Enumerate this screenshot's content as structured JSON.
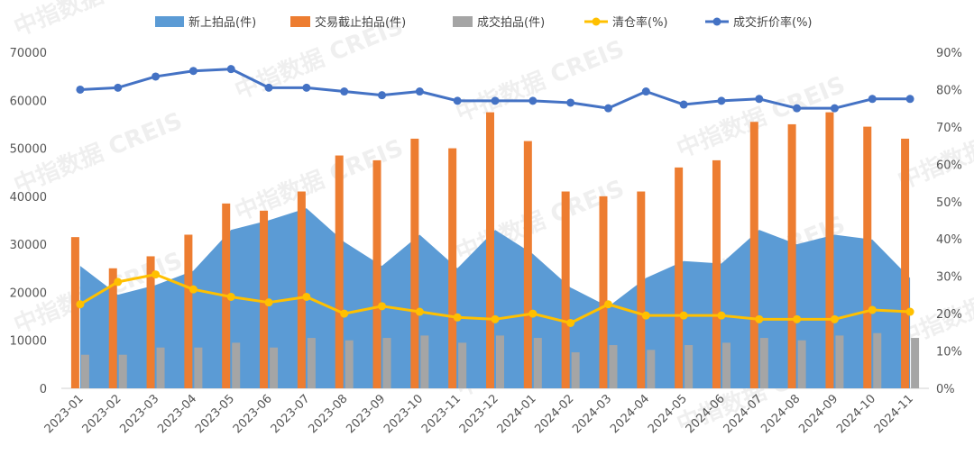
{
  "colors": {
    "area": "#5b9bd5",
    "bar_orange": "#ed7d31",
    "bar_gray": "#a5a5a5",
    "line_yellow": "#ffc000",
    "line_blue": "#4472c4"
  },
  "watermark_text": "中指数据 CREIS",
  "chart_data": {
    "type": "bar",
    "categories": [
      "2023-01",
      "2023-02",
      "2023-03",
      "2023-04",
      "2023-05",
      "2023-06",
      "2023-07",
      "2023-08",
      "2023-09",
      "2023-10",
      "2023-11",
      "2023-12",
      "2024-01",
      "2024-02",
      "2024-03",
      "2024-04",
      "2024-05",
      "2024-06",
      "2024-07",
      "2024-08",
      "2024-09",
      "2024-10",
      "2024-11"
    ],
    "left_axis": {
      "ylim": [
        0,
        70000
      ],
      "ticks": [
        "0",
        "10000",
        "20000",
        "30000",
        "40000",
        "50000",
        "60000",
        "70000"
      ]
    },
    "right_axis": {
      "ylim": [
        0,
        90
      ],
      "ticks": [
        "0%",
        "10%",
        "20%",
        "30%",
        "40%",
        "50%",
        "60%",
        "70%",
        "80%",
        "90%"
      ]
    },
    "legend_position": "top",
    "series": [
      {
        "name": "新上拍品(件)",
        "type": "area",
        "axis": "left",
        "color": "#5b9bd5",
        "values": [
          25500,
          19500,
          21500,
          24500,
          33000,
          35000,
          37500,
          30500,
          25500,
          32000,
          25000,
          33000,
          28000,
          21000,
          17000,
          23000,
          26500,
          26000,
          33000,
          30000,
          32000,
          31000,
          23000
        ]
      },
      {
        "name": "交易截止拍品(件)",
        "type": "bar",
        "axis": "left",
        "color": "#ed7d31",
        "values": [
          31500,
          25000,
          27500,
          32000,
          38500,
          37000,
          41000,
          48500,
          47500,
          52000,
          50000,
          57500,
          51500,
          41000,
          40000,
          41000,
          46000,
          47500,
          55500,
          55000,
          57500,
          54500,
          52000
        ]
      },
      {
        "name": "成交拍品(件)",
        "type": "bar",
        "axis": "left",
        "color": "#a5a5a5",
        "values": [
          7000,
          7000,
          8500,
          8500,
          9500,
          8500,
          10500,
          10000,
          10500,
          11000,
          9500,
          11000,
          10500,
          7500,
          9000,
          8000,
          9000,
          9500,
          10500,
          10000,
          11000,
          11500,
          10500
        ]
      },
      {
        "name": "清仓率(%)",
        "type": "line",
        "axis": "right",
        "color": "#ffc000",
        "values": [
          22.5,
          28.5,
          30.5,
          26.5,
          24.5,
          23,
          24.5,
          20,
          22,
          20.5,
          19,
          18.5,
          20,
          17.5,
          22.5,
          19.5,
          19.5,
          19.5,
          18.5,
          18.5,
          18.5,
          21,
          20.5
        ]
      },
      {
        "name": "成交折价率(%)",
        "type": "line",
        "axis": "right",
        "color": "#4472c4",
        "values": [
          80,
          80.5,
          83.5,
          85,
          85.5,
          80.5,
          80.5,
          79.5,
          78.5,
          79.5,
          77,
          77,
          77,
          76.5,
          75,
          79.5,
          76,
          77,
          77.5,
          75,
          75,
          77.5,
          77.5
        ]
      }
    ]
  }
}
